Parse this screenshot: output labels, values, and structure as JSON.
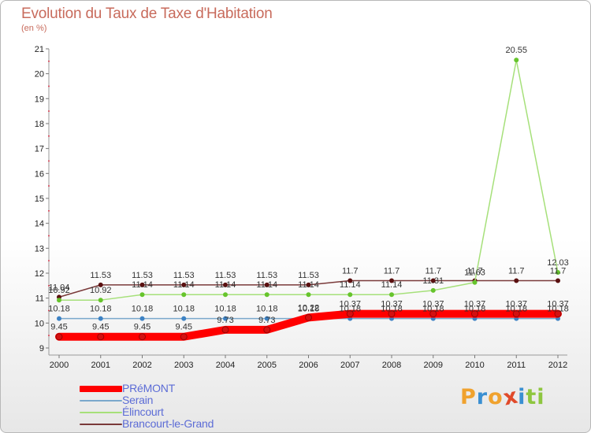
{
  "title": "Evolution du Taux de Taxe d'Habitation",
  "unit_label": "(en %)",
  "logo": {
    "text": "Proxiti",
    "letters": [
      {
        "char": "P",
        "color": "#f0a22e"
      },
      {
        "char": "r",
        "color": "#3a8fd2"
      },
      {
        "char": "o",
        "color": "#f0a22e"
      },
      {
        "char": "x",
        "color": "#e04a2a"
      },
      {
        "char": "i",
        "color": "#3a8fd2"
      },
      {
        "char": "t",
        "color": "#8ec63f"
      },
      {
        "char": "i",
        "color": "#8ec63f"
      }
    ]
  },
  "chart_data": {
    "type": "line",
    "title": "Evolution du Taux de Taxe d'Habitation",
    "ylabel": "(en %)",
    "xlabel": "",
    "ylim": [
      9,
      21
    ],
    "yticks": [
      9,
      10,
      11,
      12,
      13,
      14,
      15,
      16,
      17,
      18,
      19,
      20,
      21
    ],
    "categories": [
      "2000",
      "2001",
      "2002",
      "2003",
      "2004",
      "2005",
      "2006",
      "2007",
      "2008",
      "2009",
      "2010",
      "2011",
      "2012"
    ],
    "grid": false,
    "legend_position": "bottom-left",
    "series": [
      {
        "name": "PRéMONT",
        "color": "#ff0000",
        "marker": "#d41010",
        "width": "thick",
        "values": [
          9.45,
          9.45,
          9.45,
          9.45,
          9.73,
          9.73,
          10.22,
          10.37,
          10.37,
          10.37,
          10.37,
          10.37,
          10.37
        ],
        "labels": [
          "9.45",
          "9.45",
          "9.45",
          "9.45",
          "9.73",
          "9.73",
          "10.22",
          "10.37",
          "10.37",
          "10.37",
          "10.37",
          "10.37",
          "10.37"
        ]
      },
      {
        "name": "Serain",
        "color": "#7aa8cc",
        "marker": "#3d82c4",
        "width": "thin",
        "values": [
          10.18,
          10.18,
          10.18,
          10.18,
          10.18,
          10.18,
          10.18,
          10.18,
          10.18,
          10.18,
          10.18,
          10.18,
          10.18
        ],
        "labels": [
          "10.18",
          "10.18",
          "10.18",
          "10.18",
          "10.18",
          "10.18",
          "10.18",
          "10.18",
          "10.18",
          "10.18",
          "10.18",
          "10.18",
          "10.18"
        ]
      },
      {
        "name": "Élincourt",
        "color": "#a6e07a",
        "marker": "#66c42c",
        "width": "thin",
        "values": [
          10.92,
          10.92,
          11.14,
          11.14,
          11.14,
          11.14,
          11.14,
          11.14,
          11.14,
          11.31,
          11.63,
          20.55,
          12.03
        ],
        "labels": [
          "10.92",
          "10.92",
          "11.14",
          "11.14",
          "11.14",
          "11.14",
          "11.14",
          "11.14",
          "11.14",
          "11.31",
          "11.63",
          "20.55",
          "12.03"
        ]
      },
      {
        "name": "Brancourt-le-Grand",
        "color": "#7a3a3a",
        "marker": "#5a1010",
        "width": "thin",
        "values": [
          11.04,
          11.53,
          11.53,
          11.53,
          11.53,
          11.53,
          11.53,
          11.7,
          11.7,
          11.7,
          11.7,
          11.7,
          11.7
        ],
        "labels": [
          "11.04",
          "11.53",
          "11.53",
          "11.53",
          "11.53",
          "11.53",
          "11.53",
          "11.7",
          "11.7",
          "11.7",
          "11.7",
          "11.7",
          "11.7"
        ]
      }
    ]
  }
}
